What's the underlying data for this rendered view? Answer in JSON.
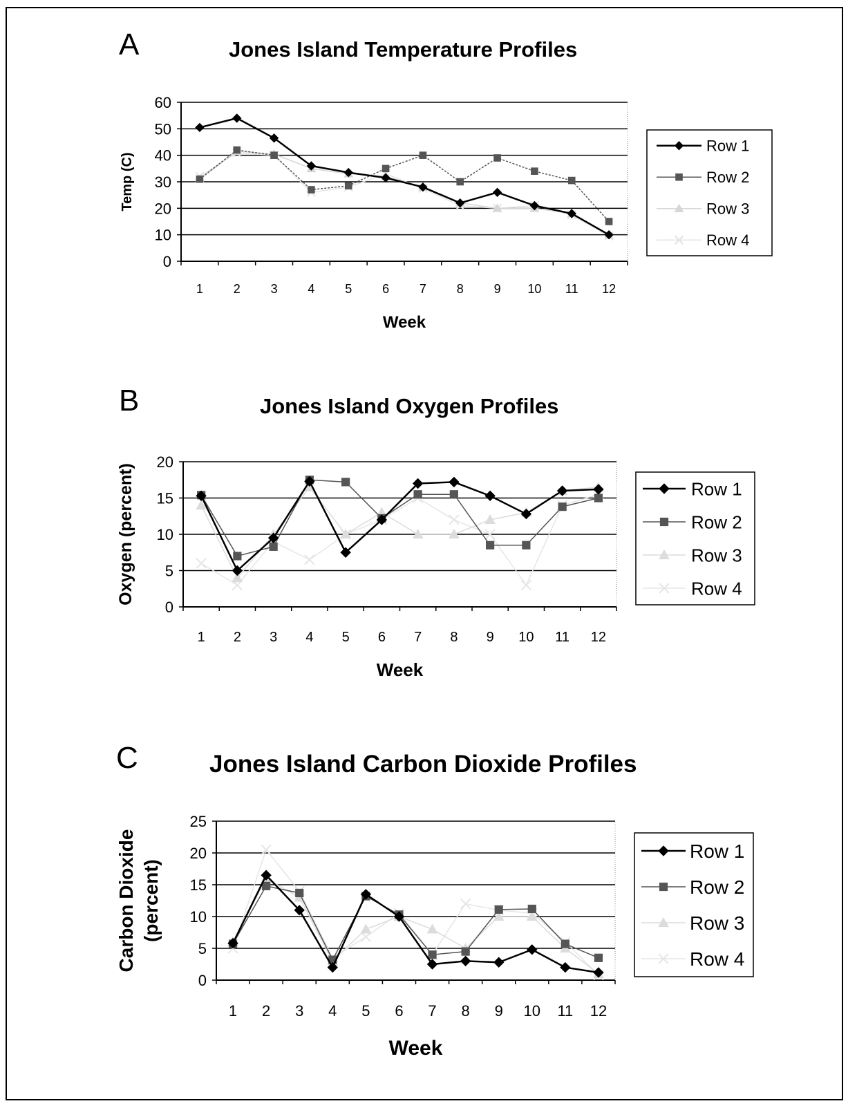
{
  "panels": [
    "A",
    "B",
    "C"
  ],
  "chart_data": [
    {
      "type": "line",
      "title": "Jones Island Temperature Profiles",
      "xlabel": "Week",
      "ylabel": "Temp (C)",
      "categories": [
        "1",
        "2",
        "3",
        "4",
        "5",
        "6",
        "7",
        "8",
        "9",
        "10",
        "11",
        "12"
      ],
      "yticks": [
        "0",
        "10",
        "20",
        "30",
        "40",
        "50",
        "60"
      ],
      "ylim": [
        0,
        60
      ],
      "grid": "horizontal",
      "legend": "right",
      "series": [
        {
          "name": "Row 1",
          "values": [
            50.5,
            54,
            46.5,
            36,
            33.5,
            31.5,
            28,
            22,
            26,
            21,
            18,
            10
          ],
          "color": "#000000",
          "marker": "diamond"
        },
        {
          "name": "Row 2",
          "values": [
            31,
            42,
            40,
            27,
            28.5,
            35,
            40,
            30,
            39,
            34,
            30.5,
            15
          ],
          "color": "#555555",
          "marker": "square"
        },
        {
          "name": "Row 3",
          "values": [
            31,
            41.5,
            40.5,
            35,
            33,
            32,
            28,
            22,
            20,
            20,
            18,
            10
          ],
          "color": "#d6d6d6",
          "marker": "triangle"
        },
        {
          "name": "Row 4",
          "values": [
            32,
            41,
            40,
            26,
            28,
            33,
            27.5,
            21,
            20,
            21,
            17.5,
            9.5
          ],
          "color": "#e4e4e4",
          "marker": "x"
        }
      ]
    },
    {
      "type": "line",
      "title": "Jones Island Oxygen Profiles",
      "xlabel": "Week",
      "ylabel": "Oxygen (percent)",
      "categories": [
        "1",
        "2",
        "3",
        "4",
        "5",
        "6",
        "7",
        "8",
        "9",
        "10",
        "11",
        "12"
      ],
      "yticks": [
        "0",
        "5",
        "10",
        "15",
        "20"
      ],
      "ylim": [
        0,
        20
      ],
      "grid": "horizontal",
      "legend": "right",
      "series": [
        {
          "name": "Row 1",
          "values": [
            15.3,
            5,
            9.5,
            17.3,
            7.5,
            12,
            17,
            17.2,
            15.3,
            12.8,
            16,
            16.2
          ],
          "color": "#000000",
          "marker": "diamond"
        },
        {
          "name": "Row 2",
          "values": [
            15.4,
            7,
            8.3,
            17.5,
            17.2,
            12.2,
            15.5,
            15.5,
            8.5,
            8.5,
            13.8,
            15
          ],
          "color": "#555555",
          "marker": "square"
        },
        {
          "name": "Row 3",
          "values": [
            14,
            4,
            10,
            16.5,
            10,
            13,
            10,
            10,
            12,
            13,
            16,
            16.5
          ],
          "color": "#dcdcdc",
          "marker": "triangle"
        },
        {
          "name": "Row 4",
          "values": [
            6,
            3,
            9,
            6.5,
            10,
            12,
            15,
            12,
            10,
            3,
            14,
            15.5
          ],
          "color": "#e6e6e6",
          "marker": "x"
        }
      ]
    },
    {
      "type": "line",
      "title": "Jones Island Carbon Dioxide Profiles",
      "xlabel": "Week",
      "ylabel": [
        "Carbon Dioxide",
        "(percent)"
      ],
      "categories": [
        "1",
        "2",
        "3",
        "4",
        "5",
        "6",
        "7",
        "8",
        "9",
        "10",
        "11",
        "12"
      ],
      "yticks": [
        "0",
        "5",
        "10",
        "15",
        "20",
        "25"
      ],
      "ylim": [
        0,
        25
      ],
      "grid": "horizontal",
      "legend": "right",
      "series": [
        {
          "name": "Row 1",
          "values": [
            5.8,
            16.5,
            11,
            2,
            13.5,
            10,
            2.5,
            3,
            2.8,
            4.8,
            2,
            1.2
          ],
          "color": "#000000",
          "marker": "diamond"
        },
        {
          "name": "Row 2",
          "values": [
            5.7,
            14.8,
            13.7,
            3.2,
            13.2,
            10.3,
            4,
            4.5,
            11.1,
            11.2,
            5.7,
            3.5
          ],
          "color": "#555555",
          "marker": "square"
        },
        {
          "name": "Row 3",
          "values": [
            6,
            16,
            13,
            3,
            8,
            10,
            8,
            5,
            10,
            10,
            5,
            1
          ],
          "color": "#dcdcdc",
          "marker": "triangle"
        },
        {
          "name": "Row 4",
          "values": [
            5,
            20.5,
            14,
            3.5,
            6.8,
            10.5,
            4,
            12,
            11,
            10.5,
            6,
            0.8
          ],
          "color": "#e6e6e6",
          "marker": "x"
        }
      ]
    }
  ]
}
